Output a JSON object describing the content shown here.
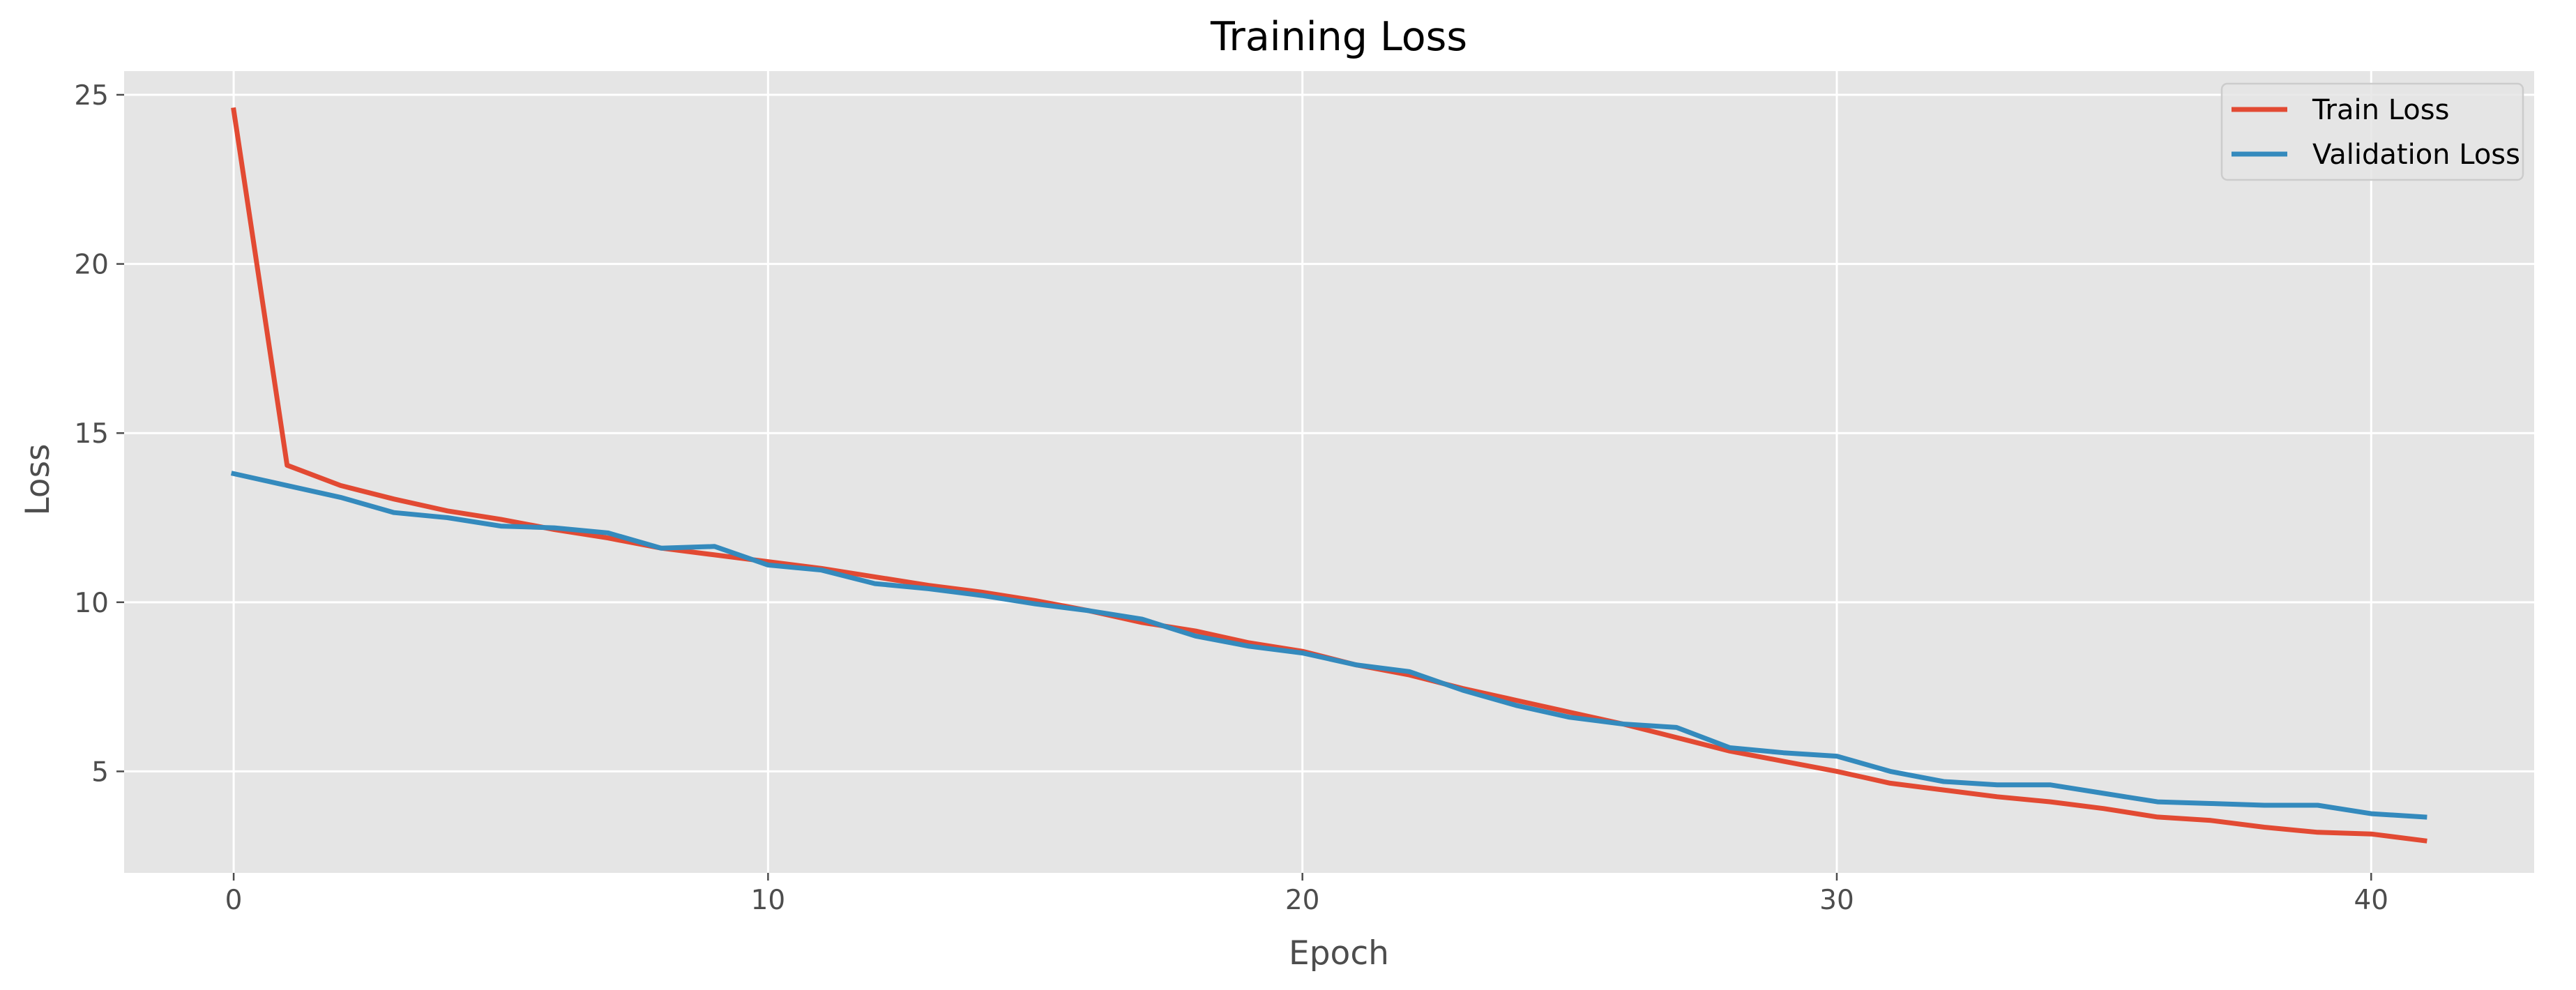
{
  "chart_data": {
    "type": "line",
    "title": "Training Loss",
    "xlabel": "Epoch",
    "ylabel": "Loss",
    "xlim": [
      -2.05,
      43.05
    ],
    "ylim": [
      2.0,
      25.7
    ],
    "xticks": [
      0,
      10,
      20,
      30,
      40
    ],
    "yticks": [
      5,
      10,
      15,
      20,
      25
    ],
    "grid": true,
    "legend_position": "top-right",
    "x": [
      0,
      1,
      2,
      3,
      4,
      5,
      6,
      7,
      8,
      9,
      10,
      11,
      12,
      13,
      14,
      15,
      16,
      17,
      18,
      19,
      20,
      21,
      22,
      23,
      24,
      25,
      26,
      27,
      28,
      29,
      30,
      31,
      32,
      33,
      34,
      35,
      36,
      37,
      38,
      39,
      40,
      41
    ],
    "series": [
      {
        "name": "Train Loss",
        "color": "#E24A33",
        "values": [
          24.55,
          14.05,
          13.45,
          13.05,
          12.7,
          12.45,
          12.15,
          11.9,
          11.6,
          11.4,
          11.2,
          11.0,
          10.75,
          10.5,
          10.3,
          10.05,
          9.75,
          9.4,
          9.15,
          8.8,
          8.55,
          8.15,
          7.85,
          7.45,
          7.1,
          6.75,
          6.4,
          6.0,
          5.6,
          5.3,
          5.0,
          4.65,
          4.45,
          4.25,
          4.1,
          3.9,
          3.65,
          3.55,
          3.35,
          3.2,
          3.15,
          2.95
        ]
      },
      {
        "name": "Validation Loss",
        "color": "#348ABD",
        "values": [
          13.8,
          13.45,
          13.1,
          12.65,
          12.5,
          12.25,
          12.2,
          12.05,
          11.6,
          11.65,
          11.1,
          10.95,
          10.55,
          10.4,
          10.2,
          9.95,
          9.75,
          9.5,
          9.0,
          8.7,
          8.5,
          8.15,
          7.95,
          7.4,
          6.95,
          6.6,
          6.4,
          6.3,
          5.7,
          5.55,
          5.45,
          5.0,
          4.7,
          4.6,
          4.6,
          4.35,
          4.1,
          4.05,
          4.0,
          4.0,
          3.75,
          3.65
        ]
      }
    ]
  },
  "style": {
    "plot_background": "#E5E5E5",
    "grid_color": "#FFFFFF",
    "text_color": "#4D4D4D"
  }
}
